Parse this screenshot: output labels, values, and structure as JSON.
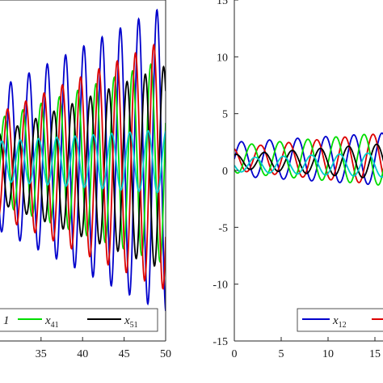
{
  "chart_data": [
    {
      "type": "line",
      "panel": "left",
      "xlim": [
        25,
        50
      ],
      "ylim": [
        -15,
        15
      ],
      "x_ticks": [
        35,
        40,
        45,
        50
      ],
      "x_tick_labels": [
        "35",
        "40",
        "45",
        "50"
      ],
      "grid": false,
      "legend_position": "bottom",
      "series": [
        {
          "name": "",
          "legend_label": "1",
          "color": "#0000cc",
          "amplitude_start": 4.5,
          "amplitude_end": 13.5,
          "period": 2.2,
          "phase": 0.0,
          "offset": 1.0
        },
        {
          "name": "x41",
          "legend_label": "x",
          "legend_sub": "41",
          "color": "#00dd00",
          "amplitude_start": 2.5,
          "amplitude_end": 9.0,
          "period": 2.2,
          "phase": 2.1,
          "offset": 0.8
        },
        {
          "name": "x51",
          "legend_label": "x",
          "legend_sub": "51",
          "color": "#000000",
          "amplitude_start": 1.6,
          "amplitude_end": 9.0,
          "period": 2.2,
          "phase": 4.0,
          "offset": 0.2
        },
        {
          "name": "",
          "color": "#dd0000",
          "amplitude_start": 3.0,
          "amplitude_end": 11.0,
          "period": 2.2,
          "phase": 1.1,
          "offset": 0.5
        },
        {
          "name": "",
          "color": "#00cccc",
          "amplitude_start": 1.5,
          "amplitude_end": 2.8,
          "period": 2.2,
          "phase": 3.0,
          "offset": 0.8
        }
      ]
    },
    {
      "type": "line",
      "panel": "right",
      "xlim": [
        0,
        20
      ],
      "ylim": [
        -15,
        15
      ],
      "x_ticks": [
        0,
        5,
        10,
        15
      ],
      "x_tick_labels": [
        "0",
        "5",
        "10",
        "15"
      ],
      "y_ticks": [
        -15,
        -10,
        -5,
        0,
        5,
        10,
        15
      ],
      "y_tick_labels": [
        "-15",
        "-10",
        "-5",
        "0",
        "5",
        "10",
        "15"
      ],
      "grid": false,
      "legend_position": "bottom",
      "series": [
        {
          "name": "x12",
          "legend_label": "x",
          "legend_sub": "12",
          "color": "#0000cc",
          "amplitude_start": 1.5,
          "amplitude_end": 2.5,
          "period": 3.0,
          "phase": 0.0,
          "offset": 1.0
        },
        {
          "name": "",
          "color": "#dd0000",
          "amplitude_start": 1.0,
          "amplitude_end": 2.6,
          "period": 3.0,
          "phase": 2.0,
          "offset": 1.0
        },
        {
          "name": "",
          "color": "#00dd00",
          "amplitude_start": 1.2,
          "amplitude_end": 2.6,
          "period": 3.0,
          "phase": 4.0,
          "offset": 1.0
        },
        {
          "name": "",
          "color": "#000000",
          "amplitude_start": 0.6,
          "amplitude_end": 1.8,
          "period": 3.0,
          "phase": 1.2,
          "offset": 0.8
        },
        {
          "name": "",
          "color": "#00cccc",
          "amplitude_start": 0.6,
          "amplitude_end": 1.2,
          "period": 3.0,
          "phase": 3.2,
          "offset": 0.5
        }
      ]
    }
  ]
}
